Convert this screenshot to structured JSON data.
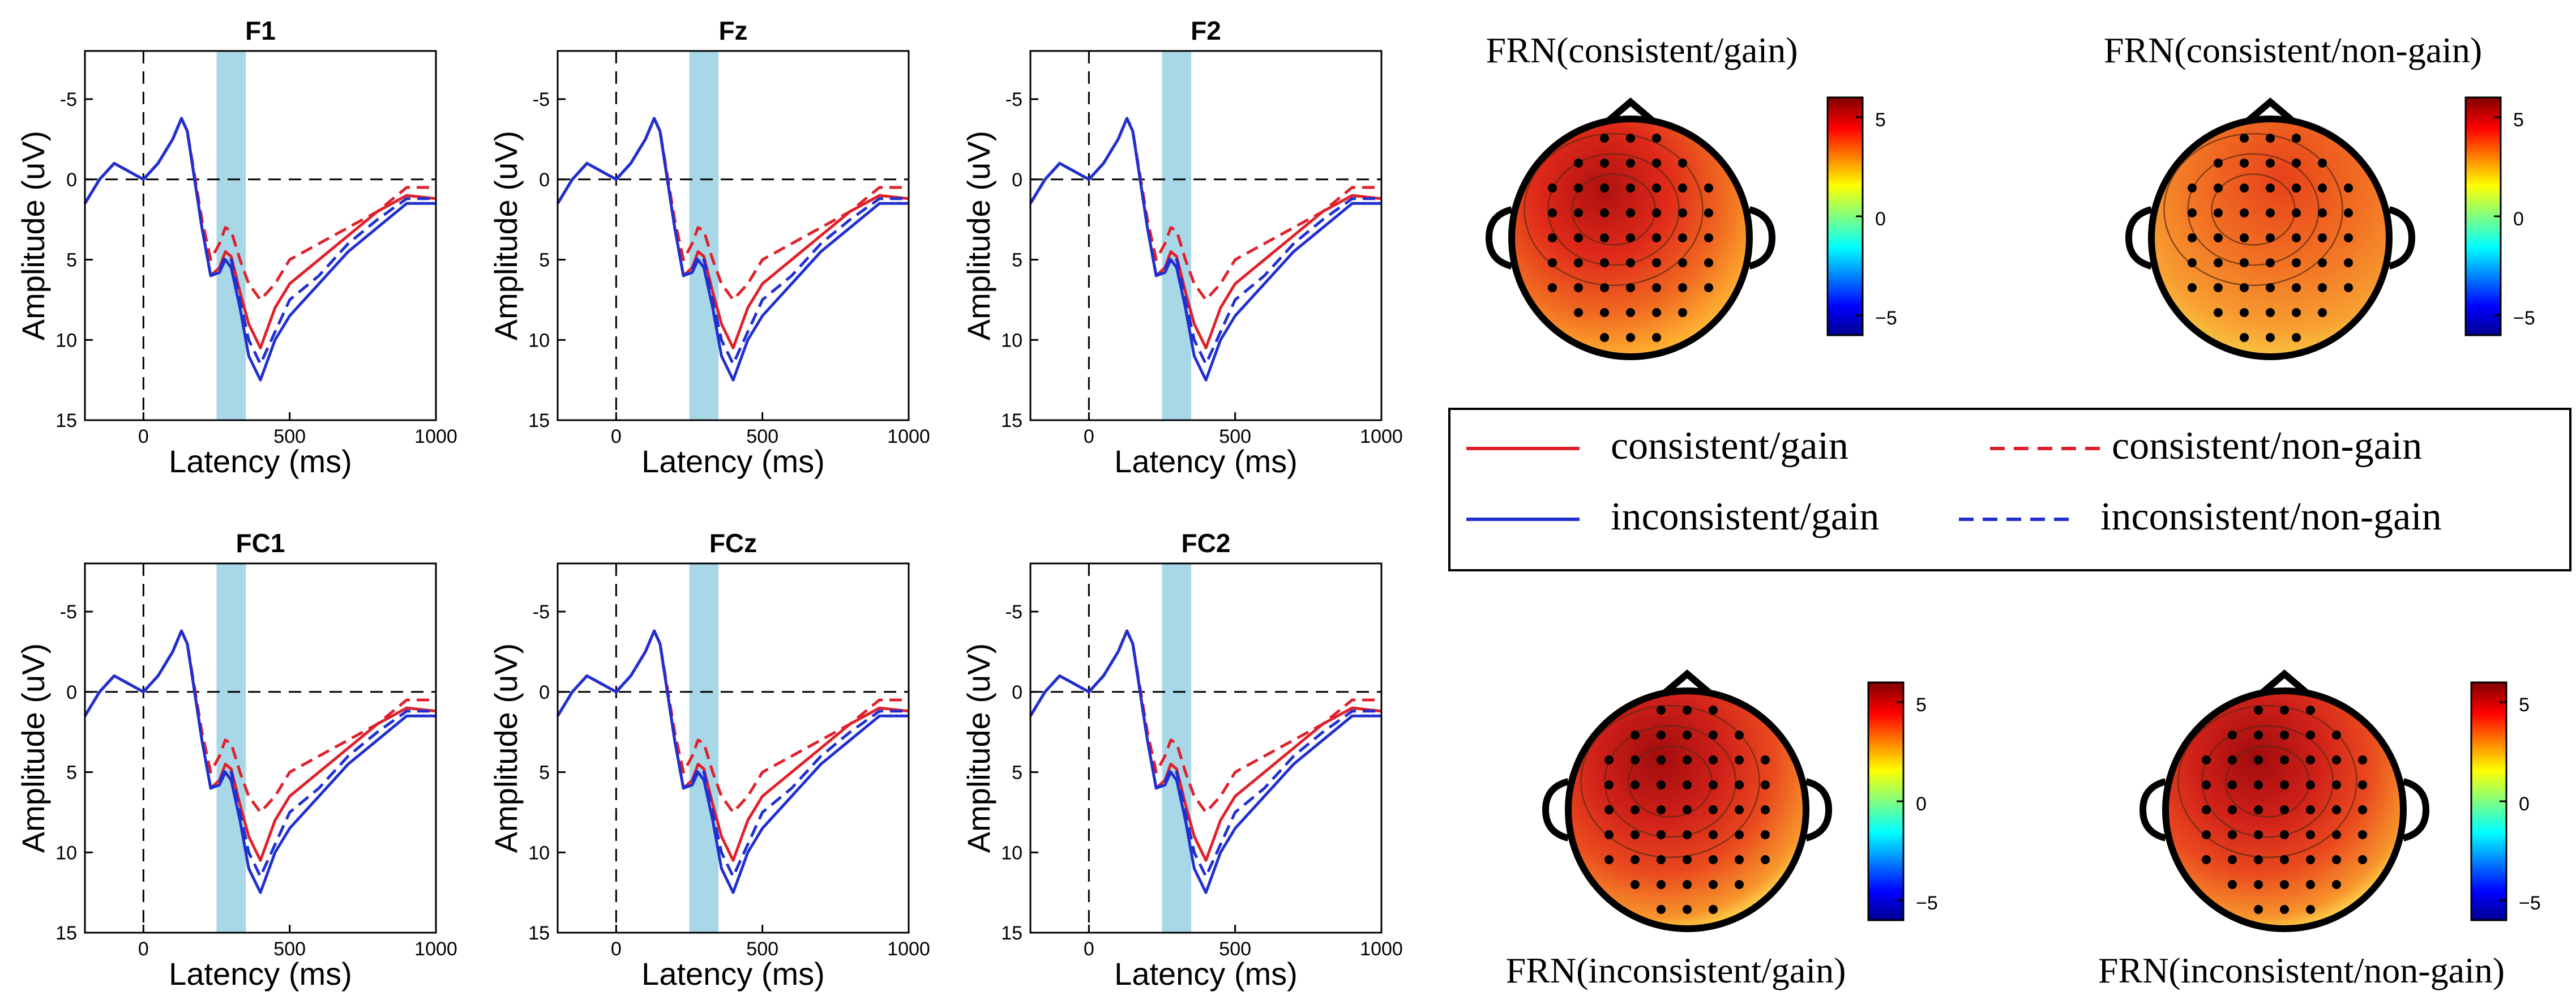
{
  "chart_data": {
    "erp_panels": [
      {
        "title": "F1"
      },
      {
        "title": "Fz"
      },
      {
        "title": "F2"
      },
      {
        "title": "FC1"
      },
      {
        "title": "FCz"
      },
      {
        "title": "FC2"
      }
    ],
    "type": "line",
    "xlabel": "Latency (ms)",
    "ylabel": "Amplitude (uV)",
    "xlim": [
      -200,
      1000
    ],
    "ylim_reversed": [
      -8,
      15
    ],
    "xticks": [
      0,
      500,
      1000
    ],
    "yticks": [
      -5,
      0,
      5,
      10,
      15
    ],
    "shaded_window_ms": [
      250,
      350
    ],
    "shaded_color": "#a8d8e8",
    "series": [
      {
        "name": "consistent/gain",
        "color": "#e0202a",
        "dash": "solid",
        "x": [
          -200,
          -150,
          -100,
          -50,
          0,
          50,
          100,
          130,
          150,
          200,
          230,
          260,
          280,
          300,
          330,
          360,
          400,
          450,
          500,
          600,
          700,
          800,
          900,
          1000
        ],
        "y": [
          1.5,
          0,
          -1,
          -0.5,
          0,
          -1,
          -2.5,
          -3.8,
          -3,
          3,
          6,
          5.5,
          4.5,
          4.8,
          7,
          9,
          10.5,
          8,
          6.5,
          5,
          3.5,
          2,
          1,
          1.2
        ]
      },
      {
        "name": "consistent/non-gain",
        "color": "#e0202a",
        "dash": "dashed",
        "x": [
          -200,
          -150,
          -100,
          -50,
          0,
          50,
          100,
          130,
          150,
          200,
          230,
          260,
          280,
          300,
          330,
          360,
          400,
          450,
          500,
          600,
          700,
          800,
          900,
          1000
        ],
        "y": [
          1.5,
          0,
          -1,
          -0.5,
          0,
          -1,
          -2.5,
          -3.8,
          -3,
          2.5,
          5,
          4,
          3,
          3.2,
          5,
          6.5,
          7.5,
          6.5,
          5,
          4,
          3,
          2,
          0.5,
          0.5
        ]
      },
      {
        "name": "inconsistent/gain",
        "color": "#2030d0",
        "dash": "solid",
        "x": [
          -200,
          -150,
          -100,
          -50,
          0,
          50,
          100,
          130,
          150,
          200,
          230,
          260,
          280,
          300,
          330,
          360,
          400,
          450,
          500,
          600,
          700,
          800,
          900,
          1000
        ],
        "y": [
          1.5,
          0,
          -1,
          -0.5,
          0,
          -1,
          -2.5,
          -3.8,
          -3,
          3,
          6,
          5.8,
          5,
          5.5,
          8,
          11,
          12.5,
          10,
          8.5,
          6.5,
          4.5,
          3,
          1.5,
          1.5
        ]
      },
      {
        "name": "inconsistent/non-gain",
        "color": "#2030d0",
        "dash": "dashed",
        "x": [
          -200,
          -150,
          -100,
          -50,
          0,
          50,
          100,
          130,
          150,
          200,
          230,
          260,
          280,
          300,
          330,
          360,
          400,
          450,
          500,
          600,
          700,
          800,
          900,
          1000
        ],
        "y": [
          1.5,
          0,
          -1,
          -0.5,
          0,
          -1,
          -2.5,
          -3.8,
          -3,
          3,
          6,
          5.6,
          4.8,
          5,
          7.5,
          10,
          11.5,
          9.5,
          7.5,
          6,
          4,
          2.5,
          1.2,
          1.2
        ]
      }
    ],
    "topomaps": [
      {
        "title": "FRN(consistent/gain)",
        "colorbar_ticks": [
          "5",
          "0",
          "−5"
        ]
      },
      {
        "title": "FRN(consistent/non-gain)",
        "colorbar_ticks": [
          "5",
          "0",
          "−5"
        ]
      },
      {
        "title": "FRN(inconsistent/gain)",
        "colorbar_ticks": [
          "5",
          "0",
          "−5"
        ]
      },
      {
        "title": "FRN(inconsistent/non-gain)",
        "colorbar_ticks": [
          "5",
          "0",
          "−5"
        ]
      }
    ],
    "colorbar_range": [
      -6,
      6
    ],
    "legend": [
      {
        "label": "consistent/gain",
        "color": "#e0202a",
        "dash": "solid"
      },
      {
        "label": "consistent/non-gain",
        "color": "#e0202a",
        "dash": "dashed"
      },
      {
        "label": "inconsistent/gain",
        "color": "#2030d0",
        "dash": "solid"
      },
      {
        "label": "inconsistent/non-gain",
        "color": "#2030d0",
        "dash": "dashed"
      }
    ]
  }
}
